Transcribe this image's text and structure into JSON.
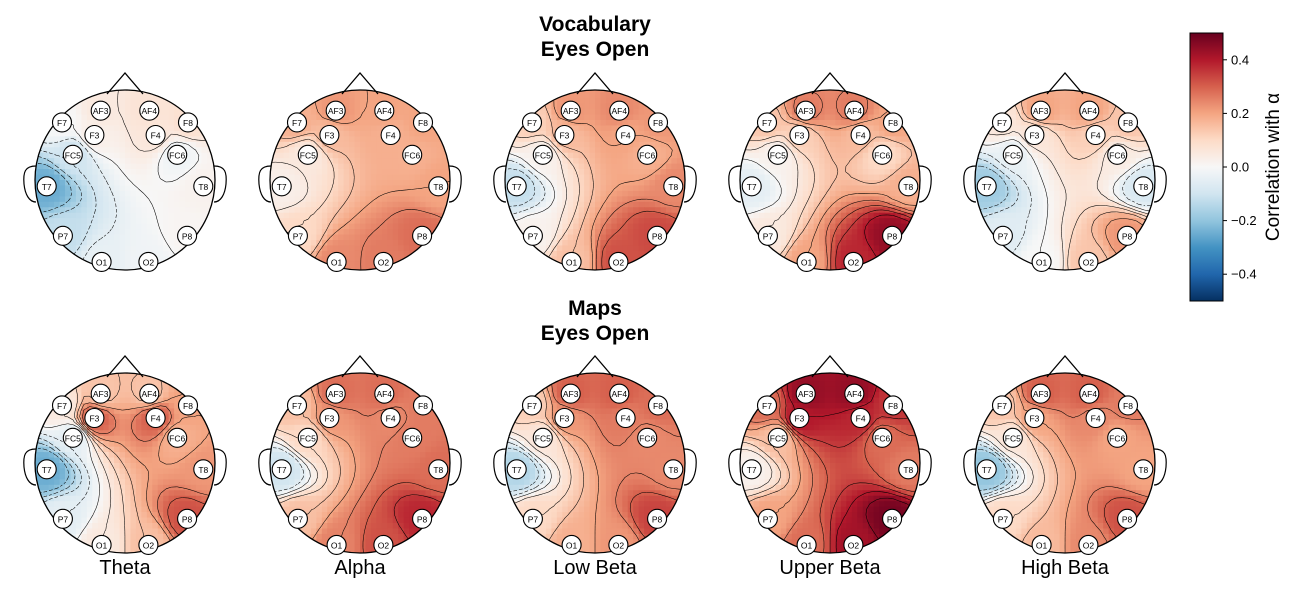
{
  "chart_data": {
    "type": "heatmap",
    "subtype": "eeg-topomap-grid",
    "bands": [
      "Theta",
      "Alpha",
      "Low Beta",
      "Upper Beta",
      "High Beta"
    ],
    "electrodes": [
      "AF3",
      "F7",
      "F3",
      "FC5",
      "T7",
      "P7",
      "O1",
      "O2",
      "P8",
      "T8",
      "FC6",
      "F4",
      "F8",
      "AF4"
    ],
    "electrode_positions": {
      "AF3": [
        -0.27,
        0.77
      ],
      "AF4": [
        0.27,
        0.77
      ],
      "F7": [
        -0.7,
        0.64
      ],
      "F8": [
        0.7,
        0.64
      ],
      "F3": [
        -0.34,
        0.5
      ],
      "F4": [
        0.34,
        0.5
      ],
      "FC5": [
        -0.58,
        0.28
      ],
      "FC6": [
        0.58,
        0.28
      ],
      "T7": [
        -0.87,
        -0.07
      ],
      "T8": [
        0.87,
        -0.07
      ],
      "P7": [
        -0.69,
        -0.62
      ],
      "P8": [
        0.69,
        -0.62
      ],
      "O1": [
        -0.26,
        -0.91
      ],
      "O2": [
        0.26,
        -0.91
      ]
    },
    "colormap": "RdBu_r",
    "vmin": -0.5,
    "vmax": 0.5,
    "colorbar": {
      "label": "Correlation with α",
      "ticks": [
        0.4,
        0.2,
        0.0,
        -0.2,
        -0.4
      ],
      "tick_labels": [
        "0.4",
        "0.2",
        "0.0",
        "−0.2",
        "−0.4"
      ]
    },
    "panels": [
      {
        "title_lines": [
          "Vocabulary",
          "Eyes Open"
        ],
        "maps": [
          {
            "band": "Theta",
            "values": {
              "AF3": 0.05,
              "F7": 0.0,
              "F3": 0.03,
              "FC5": -0.1,
              "T7": -0.25,
              "P7": -0.12,
              "O1": -0.04,
              "O2": -0.02,
              "P8": 0.01,
              "T8": 0.02,
              "FC6": -0.02,
              "F4": 0.06,
              "F8": 0.08,
              "AF4": 0.07
            }
          },
          {
            "band": "Alpha",
            "values": {
              "AF3": 0.22,
              "F7": 0.18,
              "F3": 0.16,
              "FC5": 0.05,
              "T7": 0.03,
              "P7": 0.1,
              "O1": 0.24,
              "O2": 0.26,
              "P8": 0.28,
              "T8": 0.2,
              "FC6": 0.18,
              "F4": 0.18,
              "F8": 0.2,
              "AF4": 0.2
            }
          },
          {
            "band": "Low Beta",
            "values": {
              "AF3": 0.22,
              "F7": 0.12,
              "F3": 0.16,
              "FC5": 0.02,
              "T7": -0.12,
              "P7": 0.02,
              "O1": 0.15,
              "O2": 0.32,
              "P8": 0.33,
              "T8": 0.24,
              "FC6": 0.18,
              "F4": 0.2,
              "F8": 0.22,
              "AF4": 0.24
            }
          },
          {
            "band": "Upper Beta",
            "values": {
              "AF3": 0.26,
              "F7": 0.14,
              "F3": 0.12,
              "FC5": 0.02,
              "T7": -0.05,
              "P7": 0.05,
              "O1": 0.2,
              "O2": 0.38,
              "P8": 0.44,
              "T8": 0.18,
              "FC6": 0.1,
              "F4": 0.16,
              "F8": 0.2,
              "AF4": 0.26
            }
          },
          {
            "band": "High Beta",
            "values": {
              "AF3": 0.2,
              "F7": 0.06,
              "F3": 0.06,
              "FC5": -0.04,
              "T7": -0.18,
              "P7": -0.06,
              "O1": 0.0,
              "O2": 0.14,
              "P8": 0.22,
              "T8": -0.08,
              "FC6": 0.04,
              "F4": 0.12,
              "F8": 0.14,
              "AF4": 0.2
            }
          }
        ]
      },
      {
        "title_lines": [
          "Maps",
          "Eyes Open"
        ],
        "maps": [
          {
            "band": "Theta",
            "values": {
              "AF3": 0.14,
              "F7": 0.05,
              "F3": 0.3,
              "FC5": -0.05,
              "T7": -0.25,
              "P7": -0.05,
              "O1": 0.05,
              "O2": 0.15,
              "P8": 0.32,
              "T8": 0.22,
              "FC6": 0.18,
              "F4": 0.3,
              "F8": 0.2,
              "AF4": 0.14
            }
          },
          {
            "band": "Alpha",
            "values": {
              "AF3": 0.28,
              "F7": 0.15,
              "F3": 0.22,
              "FC5": 0.1,
              "T7": -0.1,
              "P7": 0.15,
              "O1": 0.25,
              "O2": 0.32,
              "P8": 0.38,
              "T8": 0.28,
              "FC6": 0.26,
              "F4": 0.24,
              "F8": 0.26,
              "AF4": 0.28
            }
          },
          {
            "band": "Low Beta",
            "values": {
              "AF3": 0.3,
              "F7": 0.12,
              "F3": 0.22,
              "FC5": 0.06,
              "T7": -0.15,
              "P7": 0.1,
              "O1": 0.18,
              "O2": 0.22,
              "P8": 0.34,
              "T8": 0.24,
              "FC6": 0.24,
              "F4": 0.26,
              "F8": 0.28,
              "AF4": 0.3
            }
          },
          {
            "band": "Upper Beta",
            "values": {
              "AF3": 0.44,
              "F7": 0.28,
              "F3": 0.4,
              "FC5": 0.15,
              "T7": 0.02,
              "P7": 0.2,
              "O1": 0.28,
              "O2": 0.42,
              "P8": 0.48,
              "T8": 0.26,
              "FC6": 0.28,
              "F4": 0.38,
              "F8": 0.36,
              "AF4": 0.44
            }
          },
          {
            "band": "High Beta",
            "values": {
              "AF3": 0.3,
              "F7": 0.14,
              "F3": 0.2,
              "FC5": 0.06,
              "T7": -0.2,
              "P7": 0.1,
              "O1": 0.16,
              "O2": 0.24,
              "P8": 0.32,
              "T8": 0.2,
              "FC6": 0.2,
              "F4": 0.24,
              "F8": 0.26,
              "AF4": 0.3
            }
          }
        ]
      }
    ]
  }
}
